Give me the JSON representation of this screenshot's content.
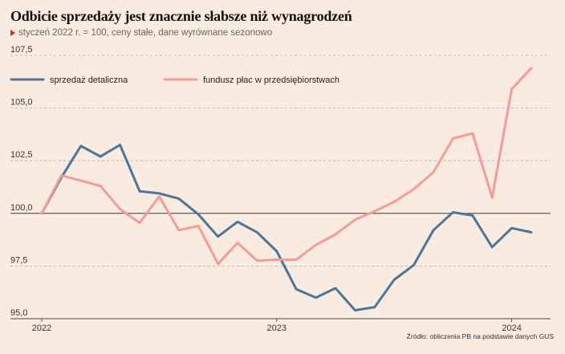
{
  "title": "Odbicie sprzedaży jest znacznie słabsze niż wynagrodzeń",
  "subtitle": "styczeń 2022 r. = 100, ceny stałe, dane wyrównane sezonowo",
  "source": "Źródło: obliczenia PB na podstawie danych GUS",
  "colors": {
    "background": "#f9ebdf",
    "retail": "#4d7597",
    "wages": "#f39c9a",
    "grid": "#aaaaaa",
    "baseline": "#222222",
    "subtitle_marker": "#d62828"
  },
  "chart_data": {
    "type": "line",
    "x": [
      "2022-01",
      "2022-02",
      "2022-03",
      "2022-04",
      "2022-05",
      "2022-06",
      "2022-07",
      "2022-08",
      "2022-09",
      "2022-10",
      "2022-11",
      "2022-12",
      "2023-01",
      "2023-02",
      "2023-03",
      "2023-04",
      "2023-05",
      "2023-06",
      "2023-07",
      "2023-08",
      "2023-09",
      "2023-10",
      "2023-11",
      "2023-12",
      "2024-01",
      "2024-02"
    ],
    "x_tick_labels": [
      "2022",
      "2023",
      "2024"
    ],
    "x_tick_positions": [
      "2022-01",
      "2023-01",
      "2024-01"
    ],
    "ylim": [
      95.0,
      107.5
    ],
    "y_ticks": [
      95.0,
      97.5,
      100.0,
      102.5,
      105.0,
      107.5
    ],
    "y_tick_labels": [
      "95,0",
      "97,5",
      "100,0",
      "102,5",
      "105,0",
      "107,5"
    ],
    "baseline": 100.0,
    "grid": "horizontal dashed",
    "legend_placement": "top-left",
    "series": [
      {
        "name": "sprzedaż detaliczna",
        "color": "#4d7597",
        "values": [
          100.0,
          101.7,
          103.2,
          102.7,
          103.25,
          101.05,
          100.95,
          100.7,
          99.95,
          98.9,
          99.6,
          99.1,
          98.2,
          96.4,
          96.0,
          96.45,
          95.4,
          95.55,
          96.85,
          97.55,
          99.2,
          100.05,
          99.9,
          98.4,
          99.3,
          99.1
        ]
      },
      {
        "name": "fundusz płac w przedsiębiorstwach",
        "color": "#f39c9a",
        "values": [
          100.0,
          101.8,
          101.55,
          101.3,
          100.2,
          99.55,
          100.8,
          99.2,
          99.4,
          97.6,
          98.6,
          97.75,
          97.8,
          97.8,
          98.5,
          99.0,
          99.7,
          100.1,
          100.55,
          101.15,
          101.95,
          103.55,
          103.8,
          100.75,
          105.9,
          106.9
        ]
      }
    ]
  }
}
